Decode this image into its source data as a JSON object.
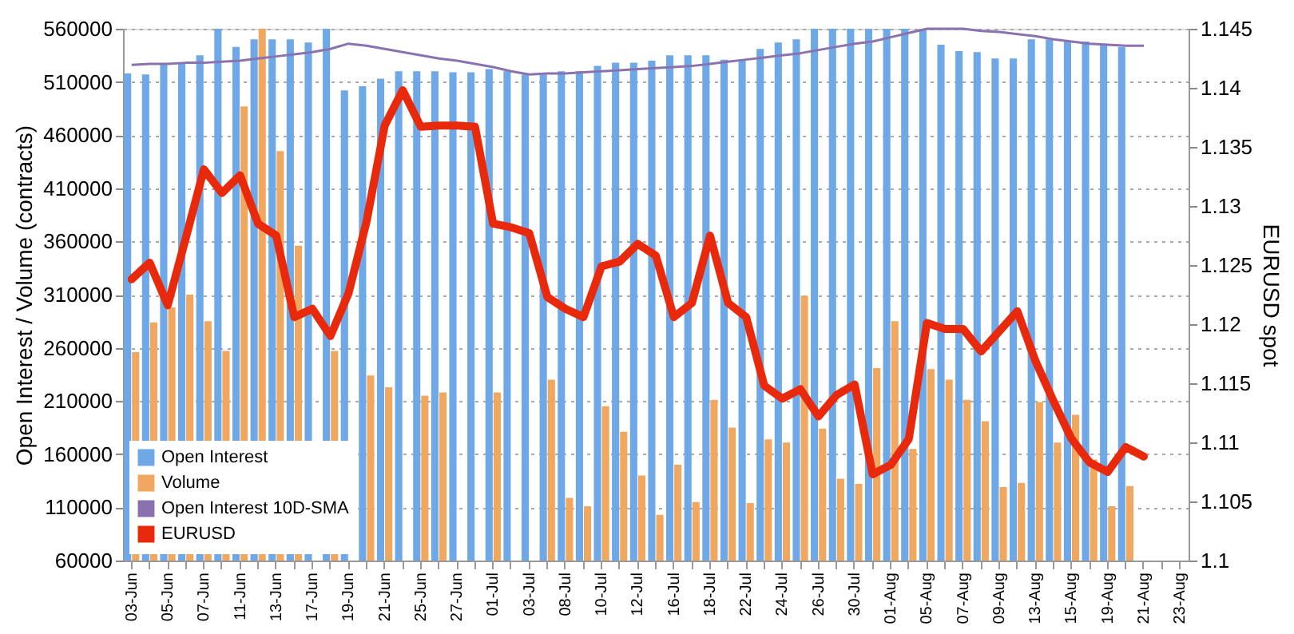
{
  "chart_data": {
    "type": "bar",
    "xlabel": null,
    "ylabel": "Open Interest / Volume (contracts)",
    "y2label": "EURUSD spot",
    "categories": [
      "03-Jun",
      null,
      "05-Jun",
      null,
      "07-Jun",
      null,
      "11-Jun",
      null,
      "13-Jun",
      null,
      "17-Jun",
      null,
      "19-Jun",
      null,
      "21-Jun",
      null,
      "25-Jun",
      null,
      "27-Jun",
      null,
      "01-Jul",
      null,
      "03-Jul",
      null,
      "08-Jul",
      null,
      "10-Jul",
      null,
      "12-Jul",
      null,
      "16-Jul",
      null,
      "18-Jul",
      null,
      "22-Jul",
      null,
      "24-Jul",
      null,
      "26-Jul",
      null,
      "30-Jul",
      null,
      "01-Aug",
      null,
      "05-Aug",
      null,
      "07-Aug",
      null,
      "09-Aug",
      null,
      "13-Aug",
      null,
      "15-Aug",
      null,
      "19-Aug",
      null,
      "21-Aug",
      null,
      "23-Aug"
    ],
    "series": [
      {
        "name": "Open Interest",
        "color": "#6fa8e6",
        "values": [
          518000,
          517000,
          527000,
          527000,
          535000,
          560000,
          543000,
          550000,
          550000,
          550000,
          547000,
          560000,
          502000,
          506000,
          513000,
          520000,
          520000,
          520000,
          519000,
          519000,
          522000,
          520000,
          517000,
          517000,
          520000,
          520000,
          525000,
          528000,
          528000,
          530000,
          535000,
          535000,
          535000,
          531000,
          531000,
          541000,
          547000,
          550000,
          560000,
          560000,
          560000,
          560000,
          560000,
          560000,
          560000,
          545000,
          539000,
          538000,
          532000,
          532000,
          550000,
          550000,
          548000,
          548000,
          545000,
          543000,
          null,
          null,
          null
        ]
      },
      {
        "name": "Volume",
        "color": "#f0a860",
        "values": [
          256000,
          284000,
          298000,
          310000,
          285000,
          257000,
          487000,
          560000,
          445000,
          356000,
          null,
          257000,
          null,
          234000,
          223000,
          null,
          215000,
          218000,
          null,
          null,
          218000,
          null,
          null,
          230000,
          119000,
          111000,
          205000,
          181000,
          140000,
          103000,
          150000,
          115000,
          211000,
          185000,
          114000,
          174000,
          171000,
          309000,
          184000,
          137000,
          132000,
          241000,
          285000,
          165000,
          240000,
          230000,
          211000,
          191000,
          129000,
          133000,
          209000,
          171000,
          197000,
          155000,
          111000,
          130000,
          null,
          null,
          null
        ]
      },
      {
        "name": "Open Interest 10D-SMA",
        "type": "line",
        "color": "#8a72b0",
        "values": [
          526000,
          527000,
          527000,
          528000,
          528000,
          529000,
          530000,
          532000,
          534000,
          536000,
          538000,
          541000,
          546000,
          544000,
          541000,
          538000,
          535000,
          532000,
          530000,
          527000,
          524000,
          520000,
          517000,
          518000,
          518000,
          519000,
          520000,
          521000,
          522000,
          523000,
          524000,
          525000,
          527000,
          529000,
          531000,
          533000,
          535000,
          537000,
          540000,
          543000,
          546000,
          548000,
          552000,
          556000,
          560000,
          560000,
          560000,
          558000,
          557000,
          555000,
          553000,
          550000,
          548000,
          546000,
          545000,
          544000,
          544000,
          null,
          null
        ]
      },
      {
        "name": "EURUSD",
        "type": "line",
        "axis": "y2",
        "color": "#e8290b",
        "values": [
          1.1238,
          1.1252,
          1.1216,
          1.1273,
          1.1331,
          1.1311,
          1.1326,
          1.1285,
          1.1275,
          1.1206,
          1.1213,
          1.119,
          1.1226,
          1.1287,
          1.1368,
          1.1398,
          1.1367,
          1.1368,
          1.1368,
          1.1367,
          1.1285,
          1.1282,
          1.1277,
          1.1223,
          1.1213,
          1.1206,
          1.1249,
          1.1253,
          1.1268,
          1.1258,
          1.1206,
          1.1218,
          1.1275,
          1.1218,
          1.1206,
          1.1148,
          1.1137,
          1.1145,
          1.1122,
          1.114,
          1.1149,
          1.1073,
          1.1081,
          1.1103,
          1.1201,
          1.1196,
          1.1196,
          1.1177,
          1.1194,
          1.1211,
          1.1169,
          1.1135,
          1.1103,
          1.1083,
          1.1075,
          1.1096,
          1.1088,
          null,
          null
        ]
      }
    ],
    "ylim": [
      60000,
      560000
    ],
    "yticks": [
      60000,
      110000,
      160000,
      210000,
      260000,
      310000,
      360000,
      410000,
      460000,
      510000,
      560000
    ],
    "y2lim": [
      1.1,
      1.145
    ],
    "y2ticks": [
      1.1,
      1.105,
      1.11,
      1.115,
      1.12,
      1.125,
      1.13,
      1.135,
      1.14,
      1.145
    ],
    "grid": "y",
    "legend": "bottom left"
  }
}
